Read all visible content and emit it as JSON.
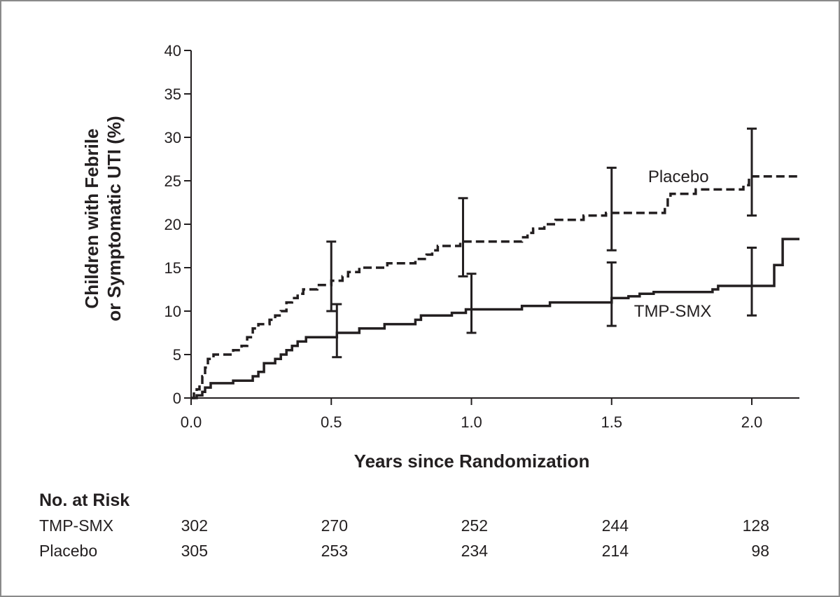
{
  "chart_data": {
    "type": "line",
    "xlabel": "Years since Randomization",
    "ylabel_lines": [
      "Children with Febrile",
      "or Symptomatic UTI (%)"
    ],
    "xlim": [
      0,
      2.17
    ],
    "ylim": [
      0,
      40
    ],
    "x_ticks": [
      0,
      0.5,
      1.0,
      1.5,
      2.0
    ],
    "x_tick_labels": [
      "0.0",
      "0.5",
      "1.0",
      "1.5",
      "2.0"
    ],
    "y_ticks": [
      0,
      5,
      10,
      15,
      20,
      25,
      30,
      35,
      40
    ],
    "y_tick_labels": [
      "0",
      "5",
      "10",
      "15",
      "20",
      "25",
      "30",
      "35",
      "40"
    ],
    "grid": false,
    "series": [
      {
        "name": "Placebo",
        "style": "dashed",
        "color": "#231f20",
        "label_position": [
          1.63,
          25.5
        ],
        "points": [
          [
            0,
            0
          ],
          [
            0.01,
            0
          ],
          [
            0.01,
            0.5
          ],
          [
            0.02,
            0.5
          ],
          [
            0.02,
            1.0
          ],
          [
            0.03,
            1.0
          ],
          [
            0.03,
            1.5
          ],
          [
            0.04,
            1.5
          ],
          [
            0.04,
            2.5
          ],
          [
            0.05,
            2.5
          ],
          [
            0.05,
            3.5
          ],
          [
            0.06,
            3.5
          ],
          [
            0.06,
            4.5
          ],
          [
            0.08,
            4.5
          ],
          [
            0.08,
            5.0
          ],
          [
            0.15,
            5.0
          ],
          [
            0.15,
            5.5
          ],
          [
            0.18,
            5.5
          ],
          [
            0.18,
            6.0
          ],
          [
            0.2,
            6.0
          ],
          [
            0.2,
            7.0
          ],
          [
            0.22,
            7.0
          ],
          [
            0.22,
            8.0
          ],
          [
            0.24,
            8.0
          ],
          [
            0.24,
            8.5
          ],
          [
            0.28,
            8.5
          ],
          [
            0.28,
            9.0
          ],
          [
            0.3,
            9.0
          ],
          [
            0.3,
            9.5
          ],
          [
            0.32,
            9.5
          ],
          [
            0.32,
            10.0
          ],
          [
            0.34,
            10.0
          ],
          [
            0.34,
            11.0
          ],
          [
            0.36,
            11.0
          ],
          [
            0.36,
            11.5
          ],
          [
            0.38,
            11.5
          ],
          [
            0.38,
            12.0
          ],
          [
            0.4,
            12.0
          ],
          [
            0.4,
            12.5
          ],
          [
            0.45,
            12.5
          ],
          [
            0.45,
            13.0
          ],
          [
            0.5,
            13.0
          ],
          [
            0.5,
            13.5
          ],
          [
            0.54,
            13.5
          ],
          [
            0.54,
            14.0
          ],
          [
            0.56,
            14.0
          ],
          [
            0.56,
            14.5
          ],
          [
            0.6,
            14.5
          ],
          [
            0.6,
            15.0
          ],
          [
            0.7,
            15.0
          ],
          [
            0.7,
            15.5
          ],
          [
            0.8,
            15.5
          ],
          [
            0.8,
            16.0
          ],
          [
            0.84,
            16.0
          ],
          [
            0.84,
            16.5
          ],
          [
            0.86,
            16.5
          ],
          [
            0.86,
            17.0
          ],
          [
            0.88,
            17.0
          ],
          [
            0.88,
            17.5
          ],
          [
            0.96,
            17.5
          ],
          [
            0.96,
            18.0
          ],
          [
            1.18,
            18.0
          ],
          [
            1.18,
            18.5
          ],
          [
            1.2,
            18.5
          ],
          [
            1.2,
            19.0
          ],
          [
            1.22,
            19.0
          ],
          [
            1.22,
            19.5
          ],
          [
            1.26,
            19.5
          ],
          [
            1.26,
            20.0
          ],
          [
            1.3,
            20.0
          ],
          [
            1.3,
            20.5
          ],
          [
            1.4,
            20.5
          ],
          [
            1.4,
            21.0
          ],
          [
            1.48,
            21.0
          ],
          [
            1.48,
            21.3
          ],
          [
            1.69,
            21.3
          ],
          [
            1.69,
            22.0
          ],
          [
            1.7,
            22.0
          ],
          [
            1.7,
            23.0
          ],
          [
            1.71,
            23.0
          ],
          [
            1.71,
            23.5
          ],
          [
            1.8,
            23.5
          ],
          [
            1.8,
            24.0
          ],
          [
            1.97,
            24.0
          ],
          [
            1.97,
            24.5
          ],
          [
            1.99,
            24.5
          ],
          [
            1.99,
            25.5
          ],
          [
            2.17,
            25.5
          ]
        ],
        "error_bars": [
          {
            "x": 0.5,
            "low": 10.0,
            "high": 18.0
          },
          {
            "x": 0.97,
            "low": 14.0,
            "high": 23.0
          },
          {
            "x": 1.5,
            "low": 17.0,
            "high": 26.5
          },
          {
            "x": 2.0,
            "low": 21.0,
            "high": 31.0
          }
        ]
      },
      {
        "name": "TMP-SMX",
        "style": "solid",
        "color": "#231f20",
        "label_position": [
          1.58,
          10.0
        ],
        "points": [
          [
            0,
            0
          ],
          [
            0.02,
            0
          ],
          [
            0.02,
            0.3
          ],
          [
            0.04,
            0.3
          ],
          [
            0.04,
            0.7
          ],
          [
            0.05,
            0.7
          ],
          [
            0.05,
            1.2
          ],
          [
            0.07,
            1.2
          ],
          [
            0.07,
            1.7
          ],
          [
            0.15,
            1.7
          ],
          [
            0.15,
            2.0
          ],
          [
            0.22,
            2.0
          ],
          [
            0.22,
            2.5
          ],
          [
            0.24,
            2.5
          ],
          [
            0.24,
            3.0
          ],
          [
            0.26,
            3.0
          ],
          [
            0.26,
            4.0
          ],
          [
            0.3,
            4.0
          ],
          [
            0.3,
            4.5
          ],
          [
            0.32,
            4.5
          ],
          [
            0.32,
            5.0
          ],
          [
            0.34,
            5.0
          ],
          [
            0.34,
            5.5
          ],
          [
            0.36,
            5.5
          ],
          [
            0.36,
            6.0
          ],
          [
            0.38,
            6.0
          ],
          [
            0.38,
            6.5
          ],
          [
            0.41,
            6.5
          ],
          [
            0.41,
            7.0
          ],
          [
            0.52,
            7.0
          ],
          [
            0.52,
            7.5
          ],
          [
            0.6,
            7.5
          ],
          [
            0.6,
            8.0
          ],
          [
            0.69,
            8.0
          ],
          [
            0.69,
            8.5
          ],
          [
            0.8,
            8.5
          ],
          [
            0.8,
            9.0
          ],
          [
            0.82,
            9.0
          ],
          [
            0.82,
            9.5
          ],
          [
            0.93,
            9.5
          ],
          [
            0.93,
            9.8
          ],
          [
            0.98,
            9.8
          ],
          [
            0.98,
            10.2
          ],
          [
            1.18,
            10.2
          ],
          [
            1.18,
            10.6
          ],
          [
            1.28,
            10.6
          ],
          [
            1.28,
            11.0
          ],
          [
            1.5,
            11.0
          ],
          [
            1.5,
            11.5
          ],
          [
            1.56,
            11.5
          ],
          [
            1.56,
            11.7
          ],
          [
            1.6,
            11.7
          ],
          [
            1.6,
            12.0
          ],
          [
            1.65,
            12.0
          ],
          [
            1.65,
            12.2
          ],
          [
            1.86,
            12.2
          ],
          [
            1.86,
            12.5
          ],
          [
            1.88,
            12.5
          ],
          [
            1.88,
            12.9
          ],
          [
            2.08,
            12.9
          ],
          [
            2.08,
            15.3
          ],
          [
            2.11,
            15.3
          ],
          [
            2.11,
            18.3
          ],
          [
            2.17,
            18.3
          ]
        ],
        "error_bars": [
          {
            "x": 0.52,
            "low": 4.7,
            "high": 10.8
          },
          {
            "x": 1.0,
            "low": 7.5,
            "high": 14.3
          },
          {
            "x": 1.5,
            "low": 8.3,
            "high": 15.6
          },
          {
            "x": 2.0,
            "low": 9.5,
            "high": 17.3
          }
        ]
      }
    ]
  },
  "risk_table": {
    "title": "No. at Risk",
    "rows": [
      {
        "label": "TMP-SMX",
        "values": [
          "302",
          "270",
          "252",
          "244",
          "128"
        ]
      },
      {
        "label": "Placebo",
        "values": [
          "305",
          "253",
          "234",
          "214",
          "98"
        ]
      }
    ]
  }
}
